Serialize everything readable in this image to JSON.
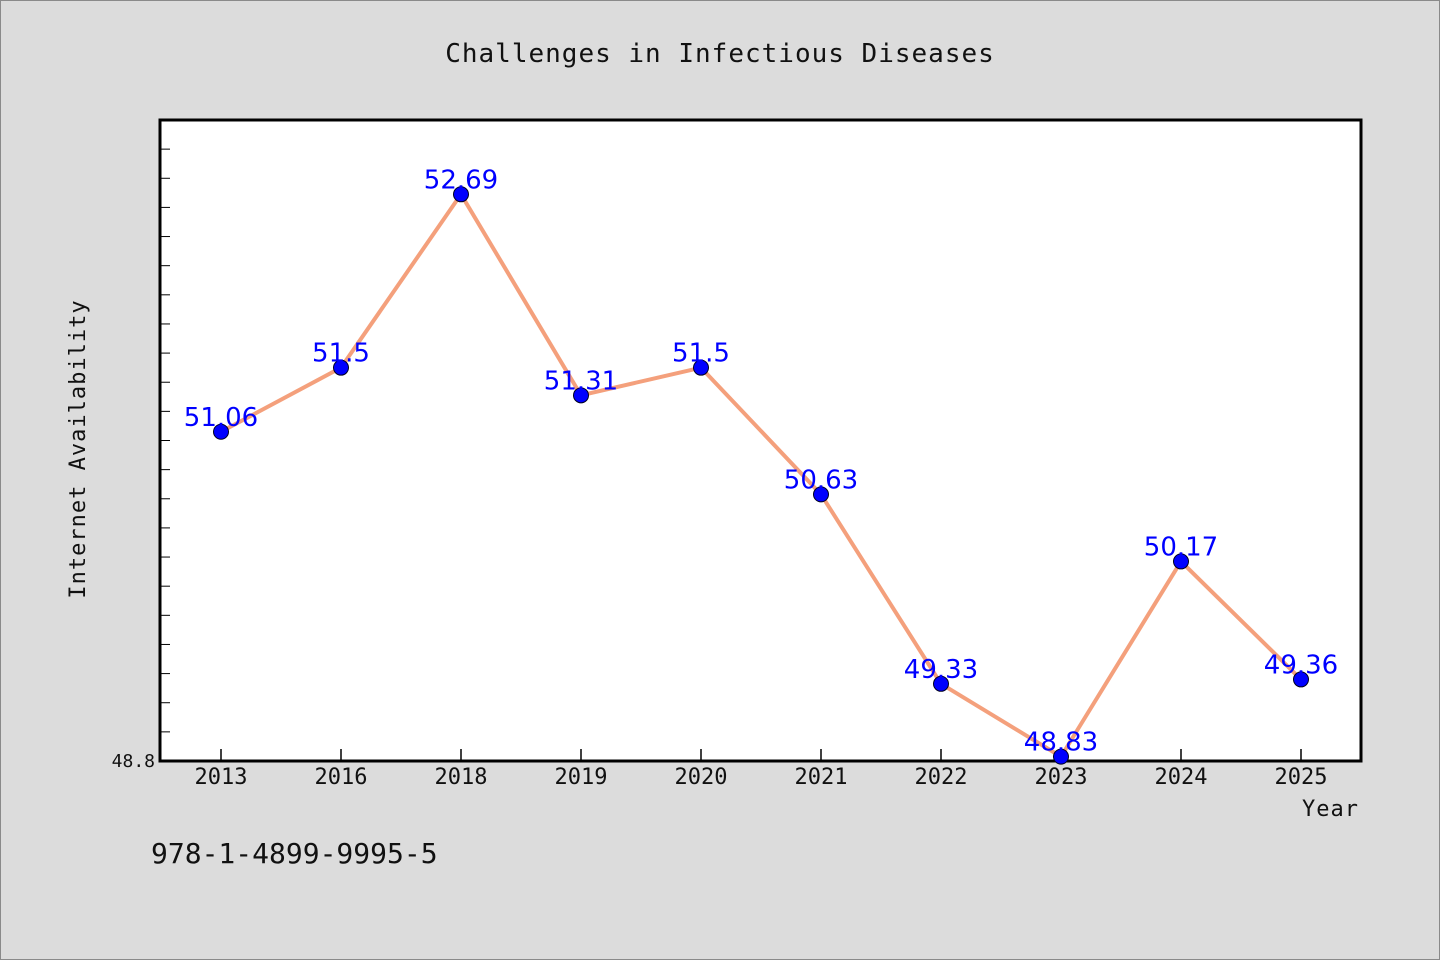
{
  "chart_data": {
    "type": "line",
    "title": "Challenges in Infectious Diseases",
    "xlabel": "Year",
    "ylabel": "Internet Availability",
    "categories": [
      "2013",
      "2016",
      "2018",
      "2019",
      "2020",
      "2021",
      "2022",
      "2023",
      "2024",
      "2025"
    ],
    "values": [
      51.06,
      51.5,
      52.69,
      51.31,
      51.5,
      50.63,
      49.33,
      48.83,
      50.17,
      49.36
    ],
    "data_labels": [
      "51.06",
      "51.5",
      "52.69",
      "51.31",
      "51.5",
      "50.63",
      "49.33",
      "48.83",
      "50.17",
      "49.36"
    ],
    "ylim": [
      48.8,
      53.2
    ],
    "y_min_label": "48.8",
    "grid": false,
    "legend": "none",
    "line_color": "#f4a07c",
    "marker_color": "#0000ff",
    "label_color": "#0000ff"
  },
  "footer": {
    "isbn": "978-1-4899-9995-5"
  }
}
